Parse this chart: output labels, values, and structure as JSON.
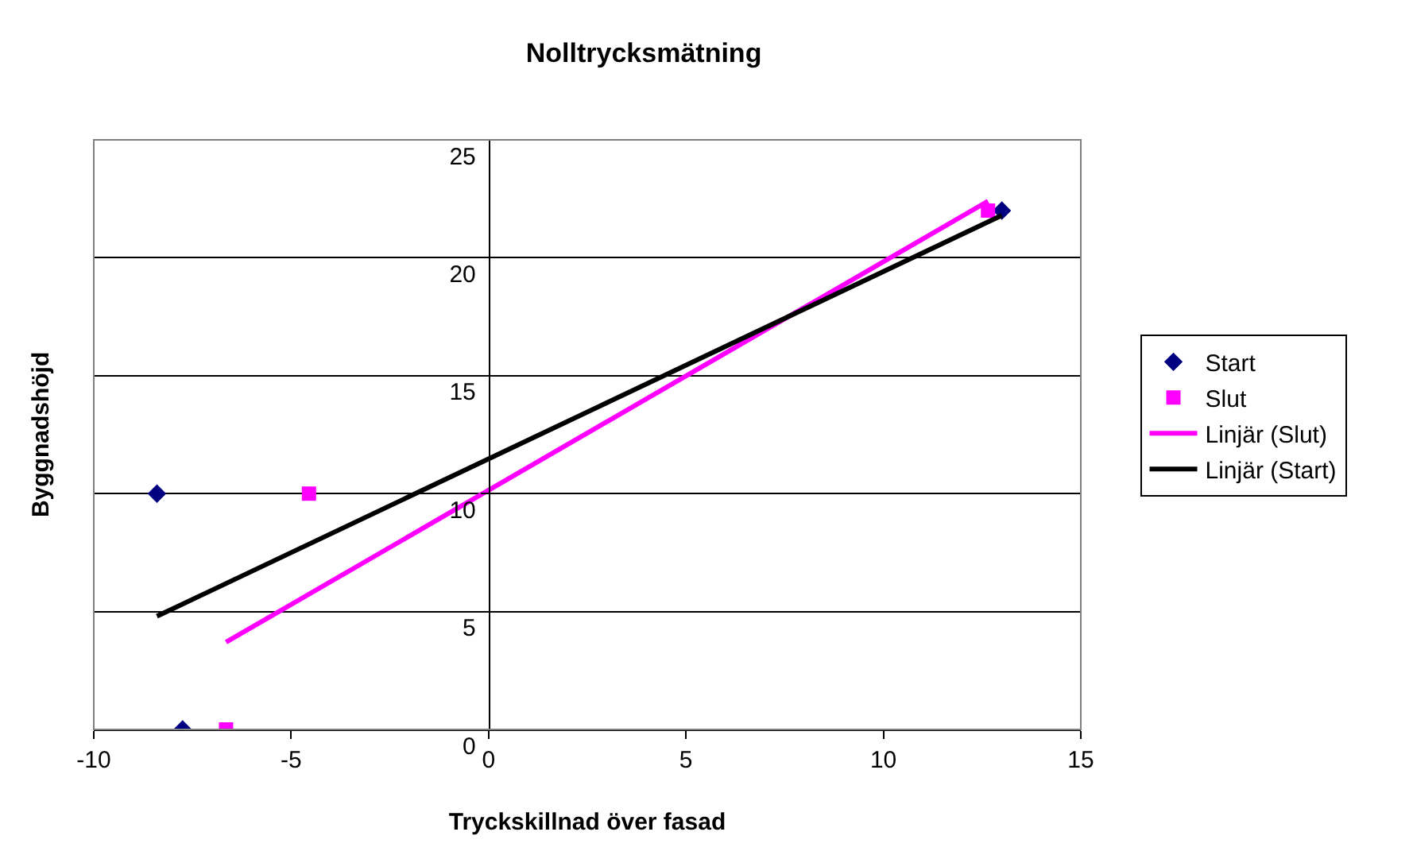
{
  "chart_data": {
    "type": "scatter",
    "title": "Nolltrycksmätning",
    "xlabel": "Tryckskillnad över fasad",
    "ylabel": "Byggnadshöjd",
    "series": [
      {
        "name": "Start",
        "marker": "diamond",
        "color": "#000080",
        "x": [
          -8.4,
          -7.75,
          13.0
        ],
        "values": [
          10,
          0,
          22
        ]
      },
      {
        "name": "Slut",
        "marker": "square",
        "color": "#ff00ff",
        "x": [
          -4.55,
          -6.65,
          12.65
        ],
        "values": [
          10,
          0,
          22
        ]
      },
      {
        "name": "Linjär (Slut)",
        "type": "line",
        "color": "#ff00ff",
        "x": [
          -6.65,
          12.65
        ],
        "values": [
          3.7,
          22.4
        ]
      },
      {
        "name": "Linjär (Start)",
        "type": "line",
        "color": "#000000",
        "x": [
          -8.4,
          13.0
        ],
        "values": [
          4.8,
          21.8
        ]
      }
    ],
    "xlim": [
      -10,
      15
    ],
    "xticks": [
      -10,
      -5,
      0,
      5,
      10,
      15
    ],
    "ylim": [
      0,
      25
    ],
    "yticks": [
      0,
      5,
      10,
      15,
      20,
      25
    ],
    "grid": "y",
    "legend": "right"
  }
}
